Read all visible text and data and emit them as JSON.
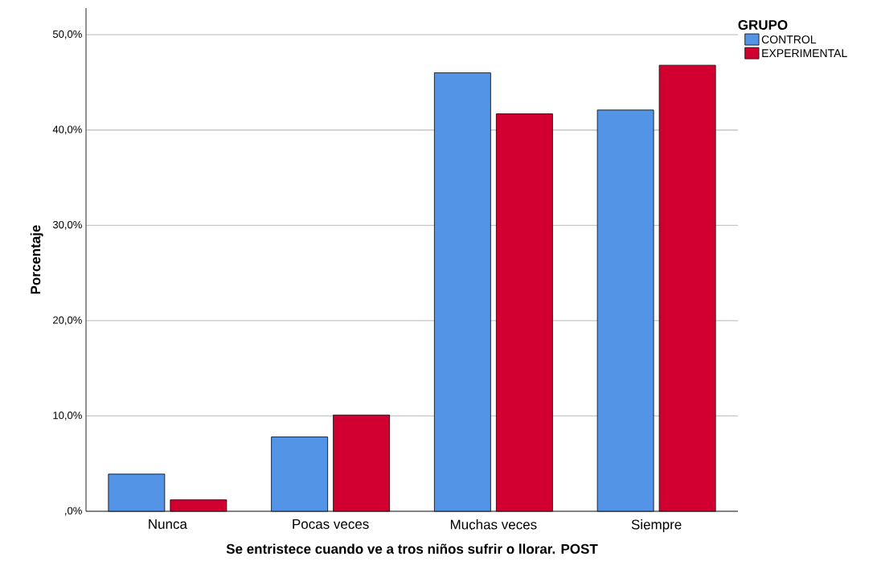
{
  "chart_data": {
    "type": "bar",
    "xlabel": "Se entristece cuando ve a tros niños sufrir o llorar. POST",
    "ylabel": "Porcentaje",
    "legend_title": "GRUPO",
    "categories": [
      "Nunca",
      "Pocas veces",
      "Muchas veces",
      "Siempre"
    ],
    "series": [
      {
        "name": "CONTROL",
        "color": "#5494e6",
        "values": [
          3.9,
          7.8,
          46.0,
          42.1
        ]
      },
      {
        "name": "EXPERIMENTAL",
        "color": "#d20030",
        "values": [
          1.2,
          10.1,
          41.7,
          46.8
        ]
      }
    ],
    "ylim": [
      0,
      52.8
    ],
    "yticks": [
      {
        "value": 0,
        "label": ",0%"
      },
      {
        "value": 10,
        "label": "10,0%"
      },
      {
        "value": 20,
        "label": "20,0%"
      },
      {
        "value": 30,
        "label": "30,0%"
      },
      {
        "value": 40,
        "label": "40,0%"
      },
      {
        "value": 50,
        "label": "50,0%"
      }
    ],
    "grid": "y",
    "legend": "top right"
  }
}
